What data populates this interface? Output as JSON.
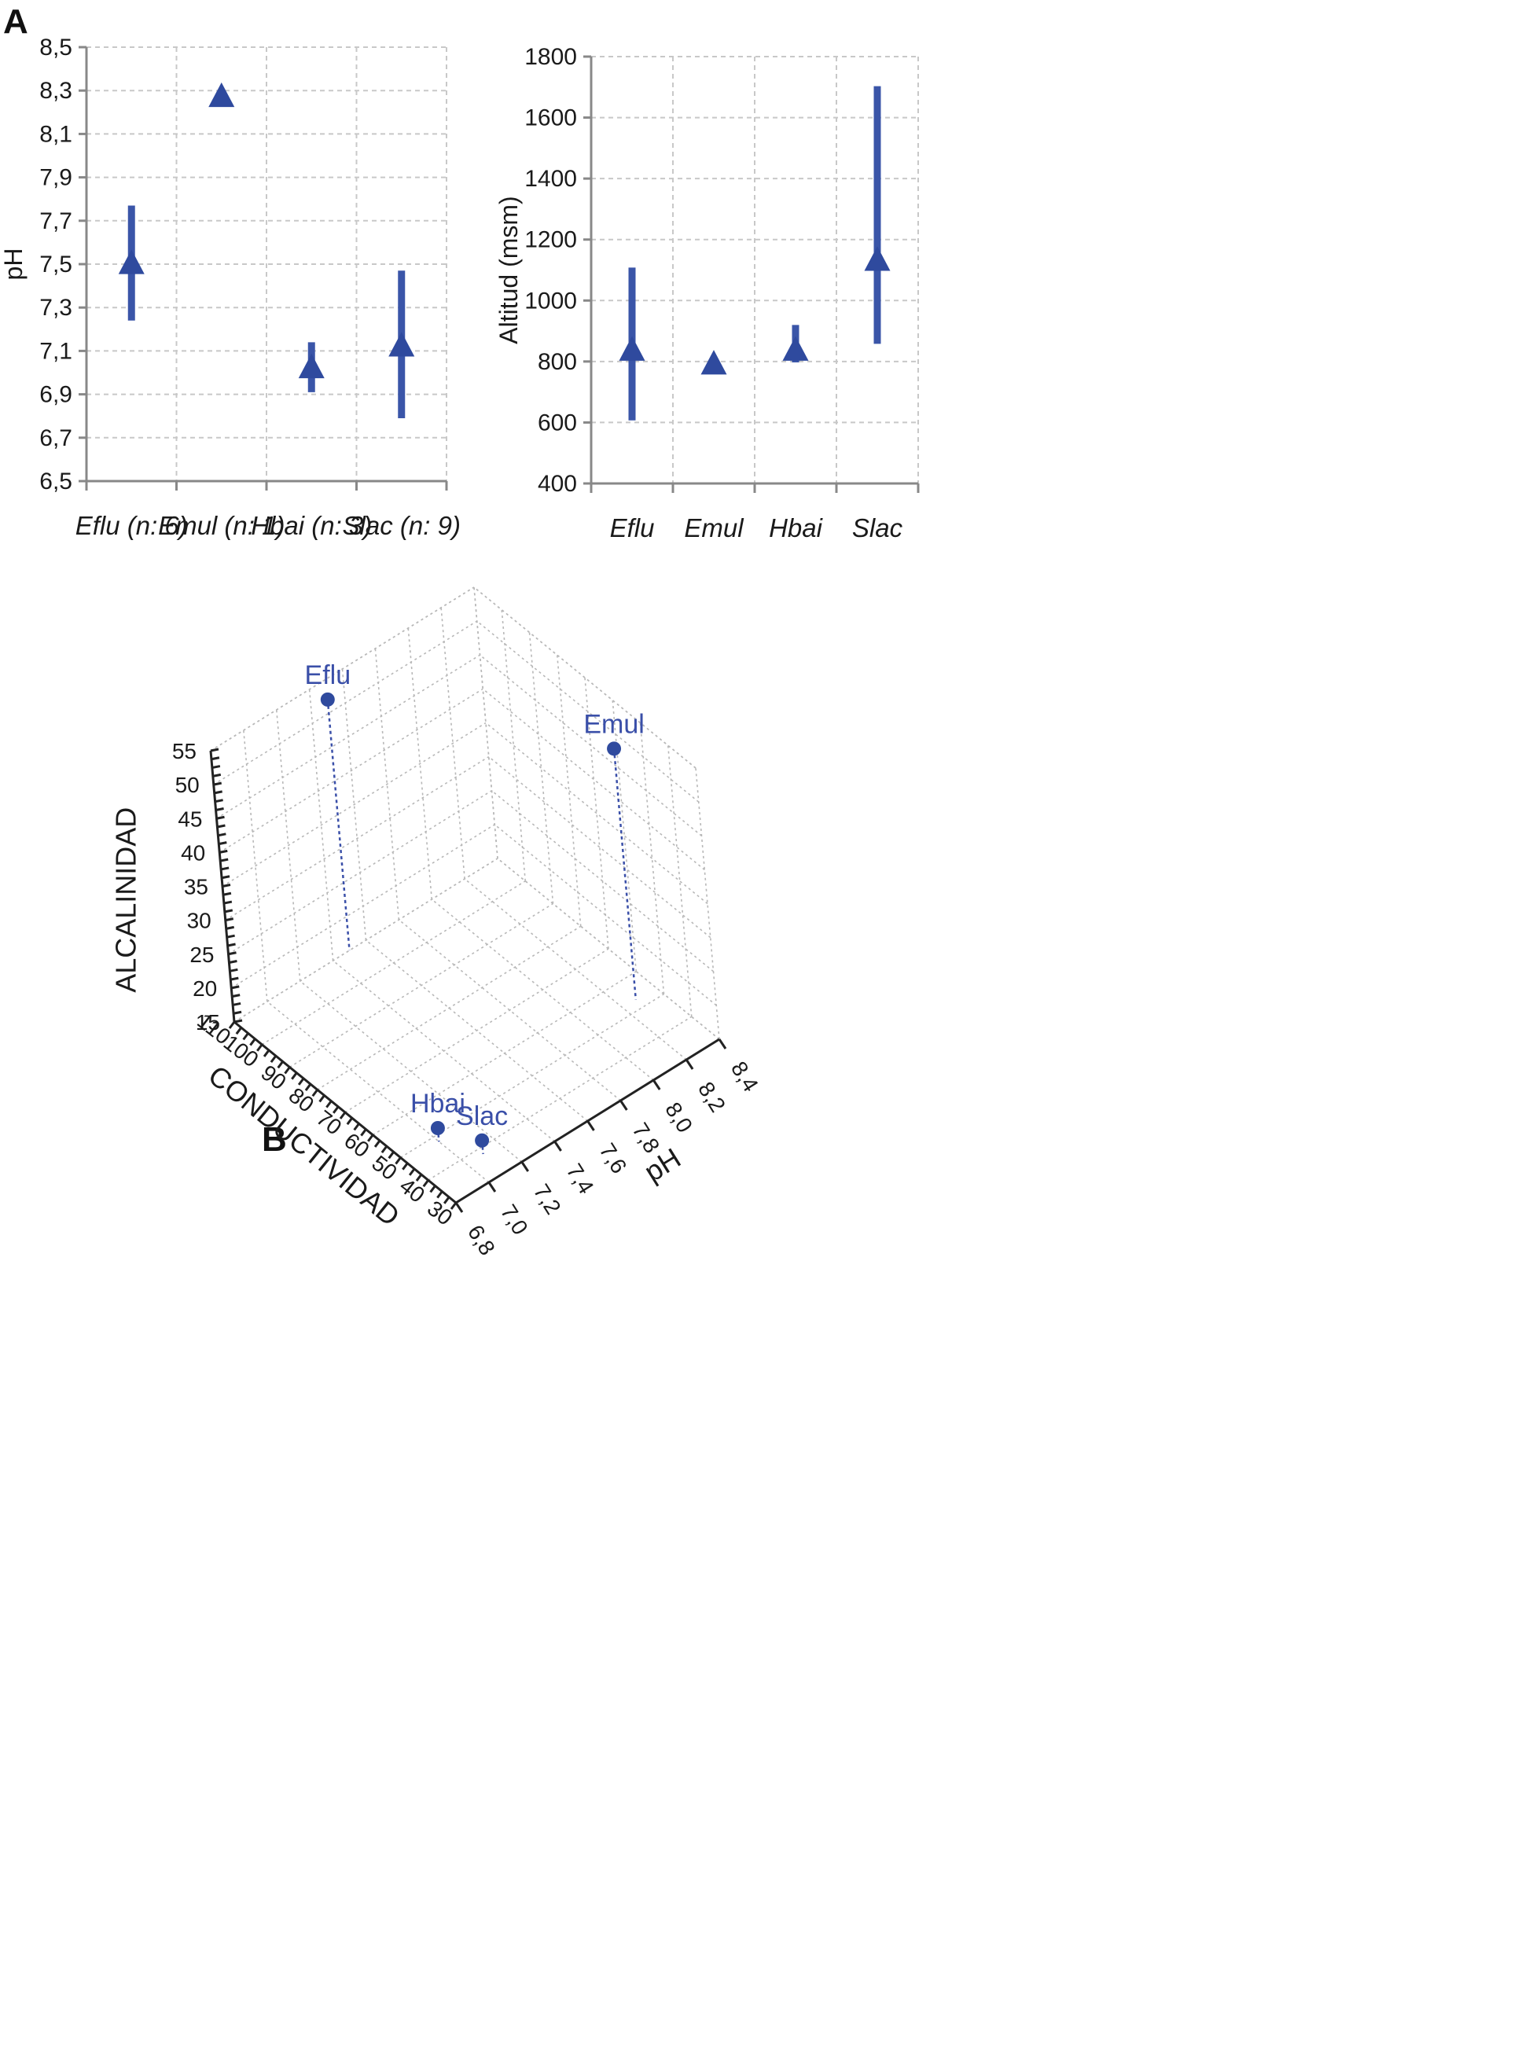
{
  "panel_a_label": "A",
  "panel_b_label": "B",
  "chart_data": [
    {
      "type": "scatter",
      "title": "",
      "xlabel": "",
      "ylabel": "pH",
      "ylim": [
        6.5,
        8.5
      ],
      "yticks": [
        "6,5",
        "6,7",
        "6,9",
        "7,1",
        "7,3",
        "7,5",
        "7,7",
        "7,9",
        "8,1",
        "8,3",
        "8,5"
      ],
      "categories": [
        "Eflu (n: 6)",
        "Emul (n: 1)",
        "Hbai (n: 3)",
        "Slac (n: 9)"
      ],
      "series": [
        {
          "values": [
            7.5,
            8.27,
            7.02,
            7.12
          ],
          "ranges": [
            [
              7.24,
              7.77
            ],
            null,
            [
              6.91,
              7.14
            ],
            [
              6.79,
              7.47
            ]
          ]
        }
      ],
      "grid": true,
      "marker": "triangle",
      "color": "#2f4a9e"
    },
    {
      "type": "scatter",
      "title": "",
      "xlabel": "",
      "ylabel": "Altitud (msm)",
      "ylim": [
        400,
        1800
      ],
      "yticks": [
        "400",
        "600",
        "800",
        "1000",
        "1200",
        "1400",
        "1600",
        "1800"
      ],
      "categories": [
        "Eflu",
        "Emul",
        "Hbai",
        "Slac"
      ],
      "series": [
        {
          "values": [
            835,
            790,
            835,
            1130
          ],
          "ranges": [
            [
              607,
              1108
            ],
            null,
            [
              797,
              920
            ],
            [
              858,
              1703
            ]
          ]
        }
      ],
      "grid": true,
      "marker": "triangle",
      "color": "#2f4a9e"
    },
    {
      "type": "scatter",
      "title": "",
      "x_axis": {
        "label": "pH",
        "range": [
          6.8,
          8.4
        ],
        "ticks": [
          "6,8",
          "7,0",
          "7,2",
          "7,4",
          "7,6",
          "7,8",
          "8,0",
          "8,2",
          "8,4"
        ]
      },
      "y_axis": {
        "label": "CONDUCTIVIDAD",
        "range": [
          30,
          110
        ],
        "ticks": [
          "30",
          "40",
          "50",
          "60",
          "70",
          "80",
          "90",
          "100",
          "110"
        ]
      },
      "z_axis": {
        "label": "ALCALINIDAD",
        "range": [
          15,
          55
        ],
        "ticks": [
          "15",
          "20",
          "25",
          "30",
          "35",
          "40",
          "45",
          "50",
          "55"
        ]
      },
      "points": [
        {
          "label": "Eflu",
          "ph": 7.5,
          "conductividad": 110,
          "alcalinidad": 52
        },
        {
          "label": "Emul",
          "ph": 8.28,
          "conductividad": 53,
          "alcalinidad": 52
        },
        {
          "label": "Hbai",
          "ph": 7.0,
          "conductividad": 48,
          "alcalinidad": 17
        },
        {
          "label": "Slac",
          "ph": 7.1,
          "conductividad": 38,
          "alcalinidad": 17
        }
      ],
      "grid": true,
      "color": "#2f4a9e"
    }
  ]
}
